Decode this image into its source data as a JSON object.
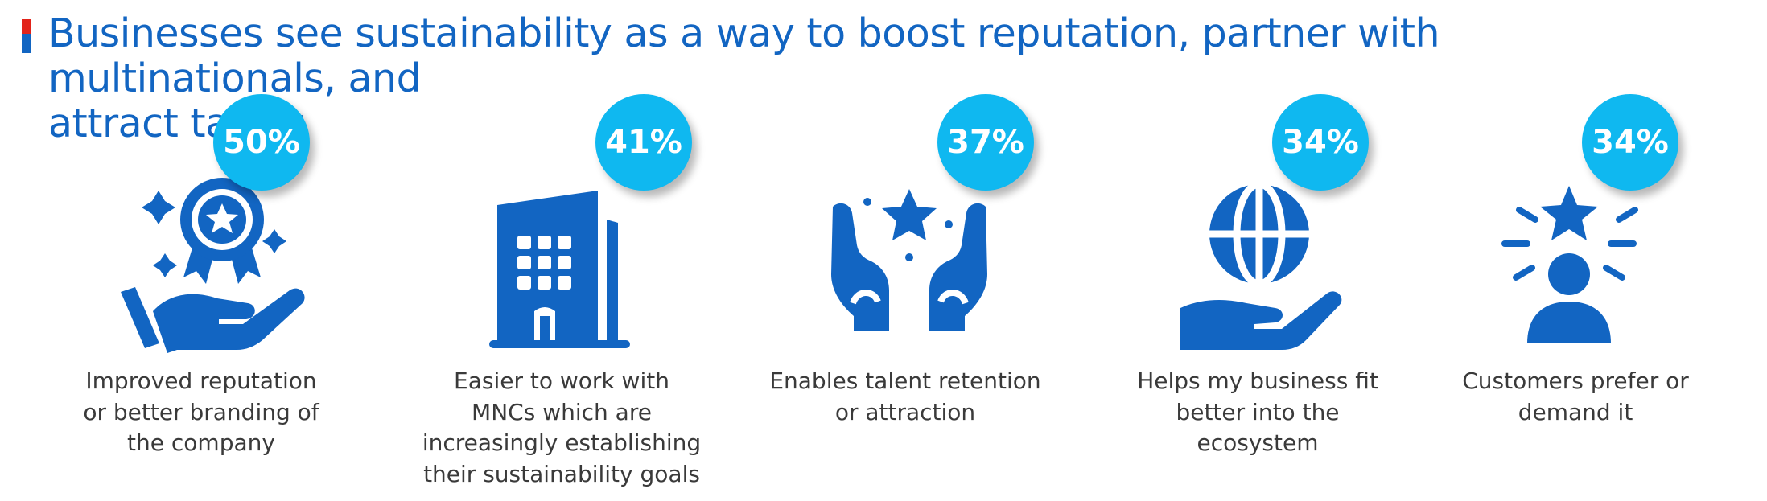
{
  "header": {
    "title_line1": "Businesses see sustainability as a way to boost reputation, partner with multinationals, and",
    "title_line2": "attract talent"
  },
  "colors": {
    "brand_blue": "#1265c2",
    "badge_cyan": "#0fb8f0",
    "accent_red": "#e2231a",
    "text_gray": "#3a3a3a"
  },
  "items": [
    {
      "icon": "award-hand-icon",
      "percent": "50%",
      "label_lines": [
        "Improved reputation",
        "or better branding of",
        "the company"
      ]
    },
    {
      "icon": "office-building-icon",
      "percent": "41%",
      "label_lines": [
        "Easier to work with",
        "MNCs which are",
        "increasingly establishing",
        "their sustainability goals"
      ]
    },
    {
      "icon": "hands-star-icon",
      "percent": "37%",
      "label_lines": [
        "Enables talent retention",
        "or attraction"
      ]
    },
    {
      "icon": "globe-hand-icon",
      "percent": "34%",
      "label_lines": [
        "Helps my business fit",
        "better into the",
        "ecosystem"
      ]
    },
    {
      "icon": "person-star-icon",
      "percent": "34%",
      "label_lines": [
        "Customers prefer or",
        "demand it"
      ]
    }
  ]
}
